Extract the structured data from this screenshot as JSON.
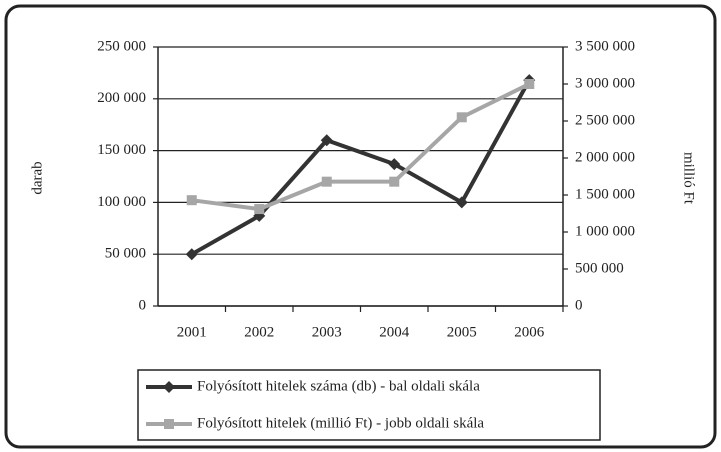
{
  "chart_data": {
    "type": "line",
    "categories": [
      "2001",
      "2002",
      "2003",
      "2004",
      "2005",
      "2006"
    ],
    "ylabel": "darab",
    "y2label": "millió Ft",
    "ylim": [
      0,
      250000
    ],
    "yticks": [
      0,
      {
        "value": 50000,
        "label": "50 000"
      },
      {
        "value": 100000,
        "label": "100 000"
      },
      {
        "value": 150000,
        "label": "150 000"
      },
      {
        "value": 200000,
        "label": "200 000"
      },
      {
        "value": 250000,
        "label": "250 000"
      }
    ],
    "y2lim": [
      0,
      3500000
    ],
    "y2ticks": [
      0,
      {
        "value": 500000,
        "label": "500 000"
      },
      {
        "value": 1000000,
        "label": "1 000 000"
      },
      {
        "value": 1500000,
        "label": "1 500 000"
      },
      {
        "value": 2000000,
        "label": "2 000 000"
      },
      {
        "value": 2500000,
        "label": "2 500 000"
      },
      {
        "value": 3000000,
        "label": "3 000 000"
      },
      {
        "value": 3500000,
        "label": "3 500 000"
      }
    ],
    "grid": true,
    "legend": "bottom",
    "series": [
      {
        "name": "Folyósított hitelek száma (db) - bal oldali skála",
        "color": "#333333",
        "marker": "diamond",
        "values": [
          50000,
          87000,
          160000,
          137000,
          100000,
          218000
        ]
      },
      {
        "name": "Folyósított hitelek (millió Ft) - jobb oldali skála",
        "color": "#a6a6a6",
        "marker": "square",
        "axis": "y2",
        "values": [
          1430000,
          1310000,
          1680000,
          1680000,
          2550000,
          3000000
        ]
      }
    ]
  }
}
